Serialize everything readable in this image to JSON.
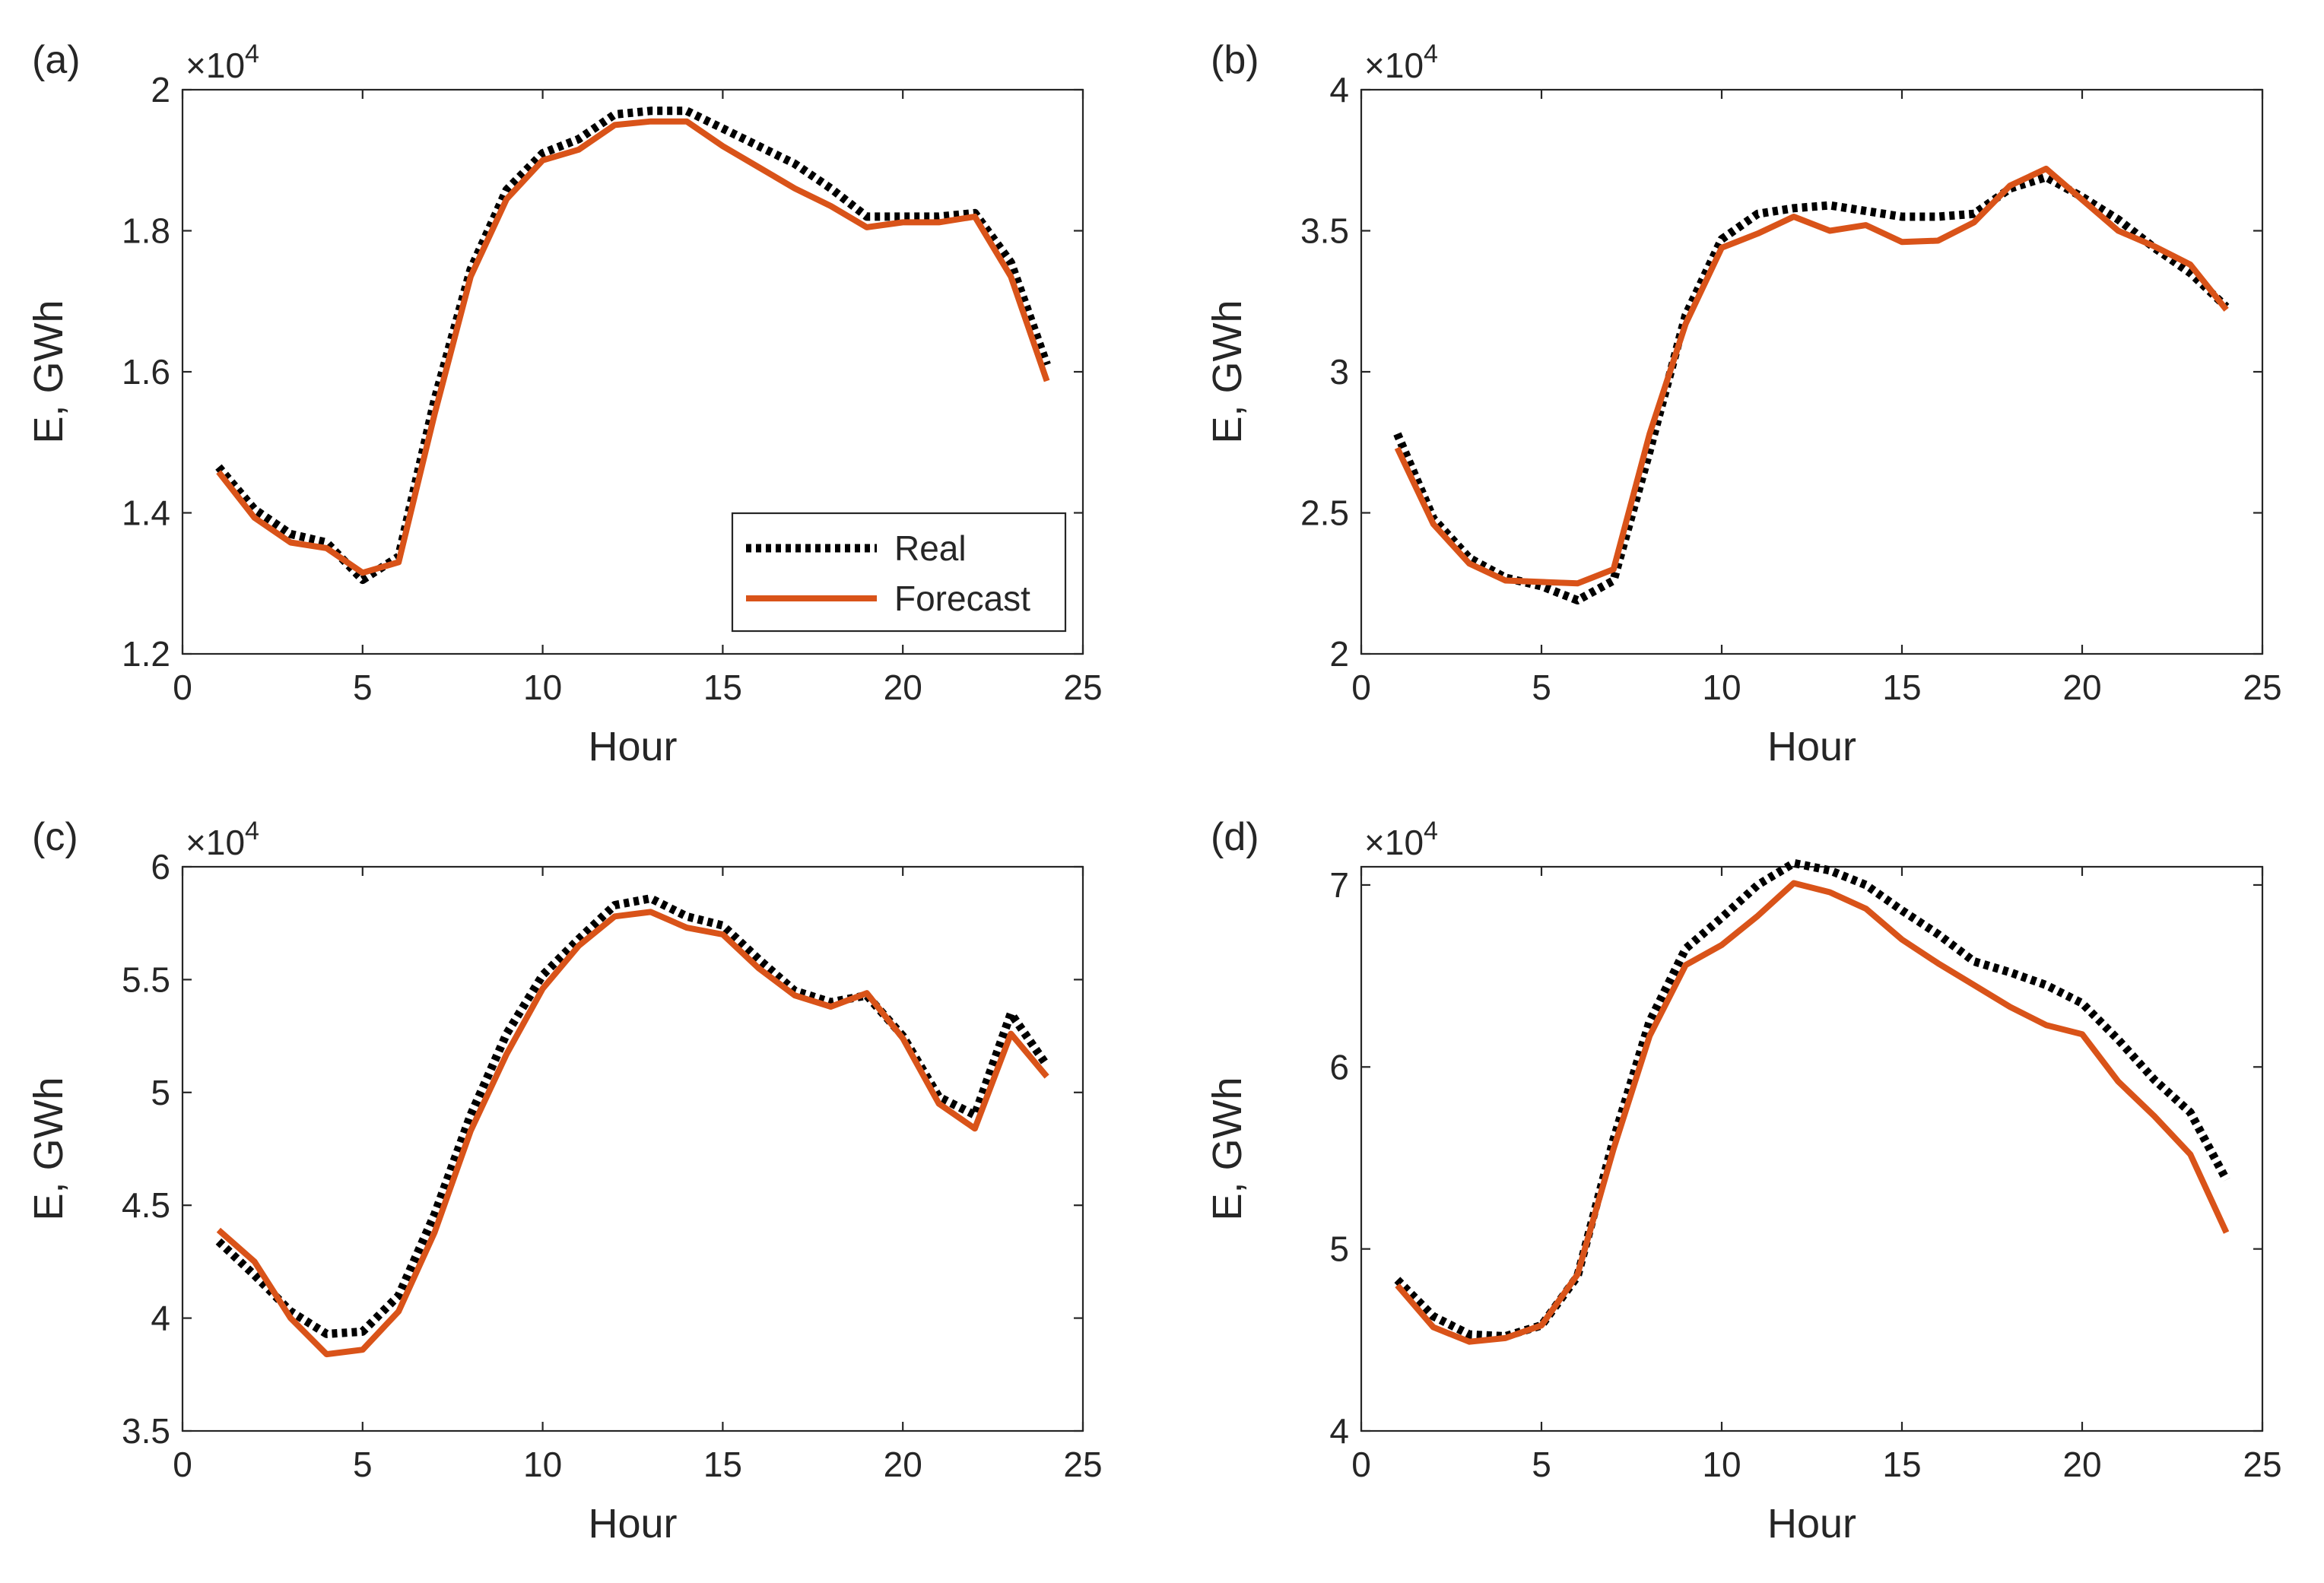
{
  "figure": {
    "legend": {
      "real_label": "Real",
      "forecast_label": "Forecast"
    },
    "colors": {
      "real": "#000000",
      "forecast": "#D95319",
      "axis": "#262626"
    }
  },
  "chart_data": [
    {
      "panel": "(a)",
      "type": "line",
      "xlabel": "Hour",
      "ylabel": "E, GWh",
      "exponent": "×10",
      "exponent_power": "4",
      "x_ticks": [
        "0",
        "5",
        "10",
        "15",
        "20",
        "25"
      ],
      "y_ticks": [
        "1.2",
        "1.4",
        "1.6",
        "1.8",
        "2"
      ],
      "y_tick_values": [
        1.2,
        1.4,
        1.6,
        1.8,
        2.0
      ],
      "xlim": [
        0,
        25
      ],
      "ylim": [
        1.2,
        2.0
      ],
      "legend_position": "bottom-right",
      "x": [
        1,
        2,
        3,
        4,
        5,
        6,
        7,
        8,
        9,
        10,
        11,
        12,
        13,
        14,
        15,
        16,
        17,
        18,
        19,
        20,
        21,
        22,
        23,
        24
      ],
      "series": [
        {
          "name": "Real",
          "values": [
            1.465,
            1.405,
            1.37,
            1.358,
            1.305,
            1.338,
            1.56,
            1.745,
            1.858,
            1.91,
            1.93,
            1.965,
            1.97,
            1.97,
            1.945,
            1.92,
            1.895,
            1.86,
            1.82,
            1.82,
            1.82,
            1.825,
            1.755,
            1.61
          ]
        },
        {
          "name": "Forecast",
          "values": [
            1.458,
            1.393,
            1.358,
            1.35,
            1.315,
            1.33,
            1.54,
            1.735,
            1.845,
            1.9,
            1.915,
            1.95,
            1.955,
            1.955,
            1.92,
            1.89,
            1.86,
            1.835,
            1.805,
            1.812,
            1.812,
            1.82,
            1.735,
            1.587
          ]
        }
      ]
    },
    {
      "panel": "(b)",
      "type": "line",
      "xlabel": "Hour",
      "ylabel": "E, GWh",
      "exponent": "×10",
      "exponent_power": "4",
      "x_ticks": [
        "0",
        "5",
        "10",
        "15",
        "20",
        "25"
      ],
      "y_ticks": [
        "2",
        "2.5",
        "3",
        "3.5",
        "4"
      ],
      "y_tick_values": [
        2.0,
        2.5,
        3.0,
        3.5,
        4.0
      ],
      "xlim": [
        0,
        25
      ],
      "ylim": [
        2.0,
        4.0
      ],
      "x": [
        1,
        2,
        3,
        4,
        5,
        6,
        7,
        8,
        9,
        10,
        11,
        12,
        13,
        14,
        15,
        16,
        17,
        18,
        19,
        20,
        21,
        22,
        23,
        24
      ],
      "series": [
        {
          "name": "Real",
          "values": [
            2.78,
            2.48,
            2.34,
            2.27,
            2.24,
            2.19,
            2.26,
            2.72,
            3.2,
            3.47,
            3.56,
            3.58,
            3.59,
            3.57,
            3.55,
            3.55,
            3.56,
            3.65,
            3.69,
            3.62,
            3.54,
            3.44,
            3.35,
            3.23
          ]
        },
        {
          "name": "Forecast",
          "values": [
            2.73,
            2.46,
            2.32,
            2.26,
            2.255,
            2.25,
            2.3,
            2.78,
            3.17,
            3.44,
            3.49,
            3.55,
            3.5,
            3.52,
            3.46,
            3.465,
            3.53,
            3.66,
            3.72,
            3.61,
            3.5,
            3.445,
            3.38,
            3.22
          ]
        }
      ]
    },
    {
      "panel": "(c)",
      "type": "line",
      "xlabel": "Hour",
      "ylabel": "E, GWh",
      "exponent": "×10",
      "exponent_power": "4",
      "x_ticks": [
        "0",
        "5",
        "10",
        "15",
        "20",
        "25"
      ],
      "y_ticks": [
        "3.5",
        "4",
        "4.5",
        "5",
        "5.5",
        "6"
      ],
      "y_tick_values": [
        3.5,
        4.0,
        4.5,
        5.0,
        5.5,
        6.0
      ],
      "xlim": [
        0,
        25
      ],
      "ylim": [
        3.5,
        6.0
      ],
      "x": [
        1,
        2,
        3,
        4,
        5,
        6,
        7,
        8,
        9,
        10,
        11,
        12,
        13,
        14,
        15,
        16,
        17,
        18,
        19,
        20,
        21,
        22,
        23,
        24
      ],
      "series": [
        {
          "name": "Real",
          "values": [
            4.34,
            4.19,
            4.03,
            3.93,
            3.94,
            4.1,
            4.46,
            4.9,
            5.26,
            5.52,
            5.68,
            5.83,
            5.86,
            5.78,
            5.74,
            5.59,
            5.45,
            5.4,
            5.43,
            5.25,
            4.98,
            4.9,
            5.35,
            5.12
          ]
        },
        {
          "name": "Forecast",
          "values": [
            4.39,
            4.25,
            4.0,
            3.84,
            3.86,
            4.03,
            4.38,
            4.83,
            5.17,
            5.46,
            5.65,
            5.78,
            5.8,
            5.73,
            5.7,
            5.55,
            5.43,
            5.38,
            5.44,
            5.24,
            4.95,
            4.84,
            5.26,
            5.07
          ]
        }
      ]
    },
    {
      "panel": "(d)",
      "type": "line",
      "xlabel": "Hour",
      "ylabel": "E, GWh",
      "exponent": "×10",
      "exponent_power": "4",
      "x_ticks": [
        "0",
        "5",
        "10",
        "15",
        "20",
        "25"
      ],
      "y_ticks": [
        "4",
        "5",
        "6",
        "7"
      ],
      "y_tick_values": [
        4.0,
        5.0,
        6.0,
        7.0
      ],
      "xlim": [
        0,
        25
      ],
      "ylim": [
        4.0,
        7.1
      ],
      "x": [
        1,
        2,
        3,
        4,
        5,
        6,
        7,
        8,
        9,
        10,
        11,
        12,
        13,
        14,
        15,
        16,
        17,
        18,
        19,
        20,
        21,
        22,
        23,
        24
      ],
      "series": [
        {
          "name": "Real",
          "values": [
            4.83,
            4.63,
            4.53,
            4.52,
            4.58,
            4.85,
            5.6,
            6.25,
            6.65,
            6.82,
            7.0,
            7.12,
            7.08,
            7.0,
            6.86,
            6.73,
            6.58,
            6.52,
            6.45,
            6.35,
            6.15,
            5.93,
            5.75,
            5.38
          ]
        },
        {
          "name": "Forecast",
          "values": [
            4.8,
            4.57,
            4.49,
            4.51,
            4.58,
            4.86,
            5.55,
            6.17,
            6.56,
            6.67,
            6.83,
            7.01,
            6.96,
            6.87,
            6.7,
            6.57,
            6.45,
            6.33,
            6.23,
            6.18,
            5.92,
            5.73,
            5.52,
            5.09
          ]
        }
      ]
    }
  ]
}
